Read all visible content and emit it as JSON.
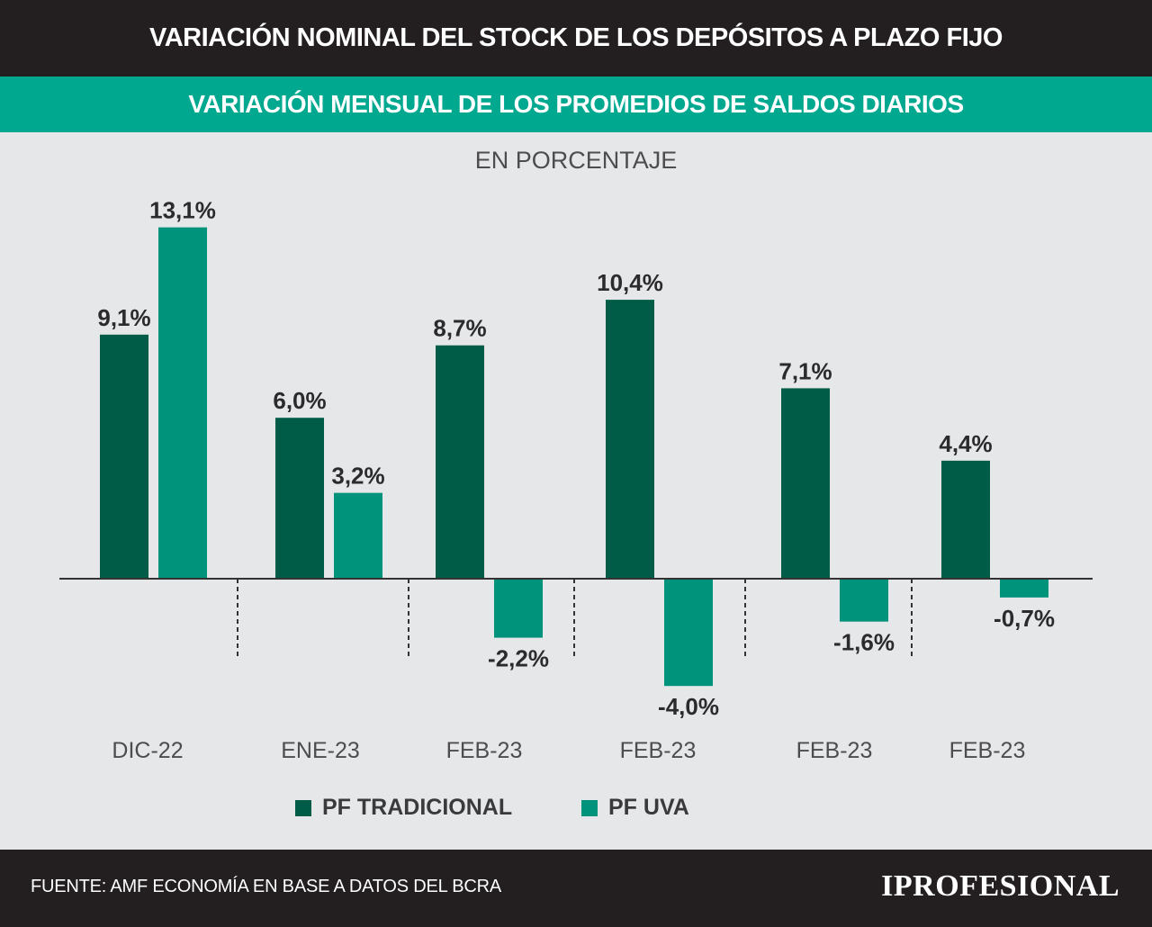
{
  "header": {
    "title": "VARIACIÓN NOMINAL DEL STOCK DE LOS DEPÓSITOS A PLAZO FIJO",
    "subtitle": "VARIACIÓN MENSUAL DE LOS PROMEDIOS DE SALDOS DIARIOS",
    "unit_label": "EN PORCENTAJE"
  },
  "footer": {
    "source": "FUENTE: AMF ECONOMÍA EN BASE A DATOS DEL BCRA",
    "logo": "IPROFESIONAL"
  },
  "colors": {
    "header_bg": "#231f20",
    "accent": "#00a88f",
    "series_tradicional": "#005c46",
    "series_uva": "#00937b",
    "background": "#e6e7e8"
  },
  "chart_data": {
    "type": "bar",
    "categories": [
      "DIC-22",
      "ENE-23",
      "FEB-23",
      "FEB-23",
      "FEB-23",
      "FEB-23"
    ],
    "series": [
      {
        "name": "PF TRADICIONAL",
        "values": [
          9.1,
          6.0,
          8.7,
          10.4,
          7.1,
          4.4
        ],
        "labels": [
          "9,1%",
          "6,0%",
          "8,7%",
          "10,4%",
          "7,1%",
          "4,4%"
        ]
      },
      {
        "name": "PF UVA",
        "values": [
          13.1,
          3.2,
          -2.2,
          -4.0,
          -1.6,
          -0.7
        ],
        "labels": [
          "13,1%",
          "3,2%",
          "-2,2%",
          "-4,0%",
          "-1,6%",
          "-0,7%"
        ]
      }
    ],
    "ylim": [
      -4.0,
      13.1
    ],
    "grid": false,
    "legend_position": "bottom"
  }
}
